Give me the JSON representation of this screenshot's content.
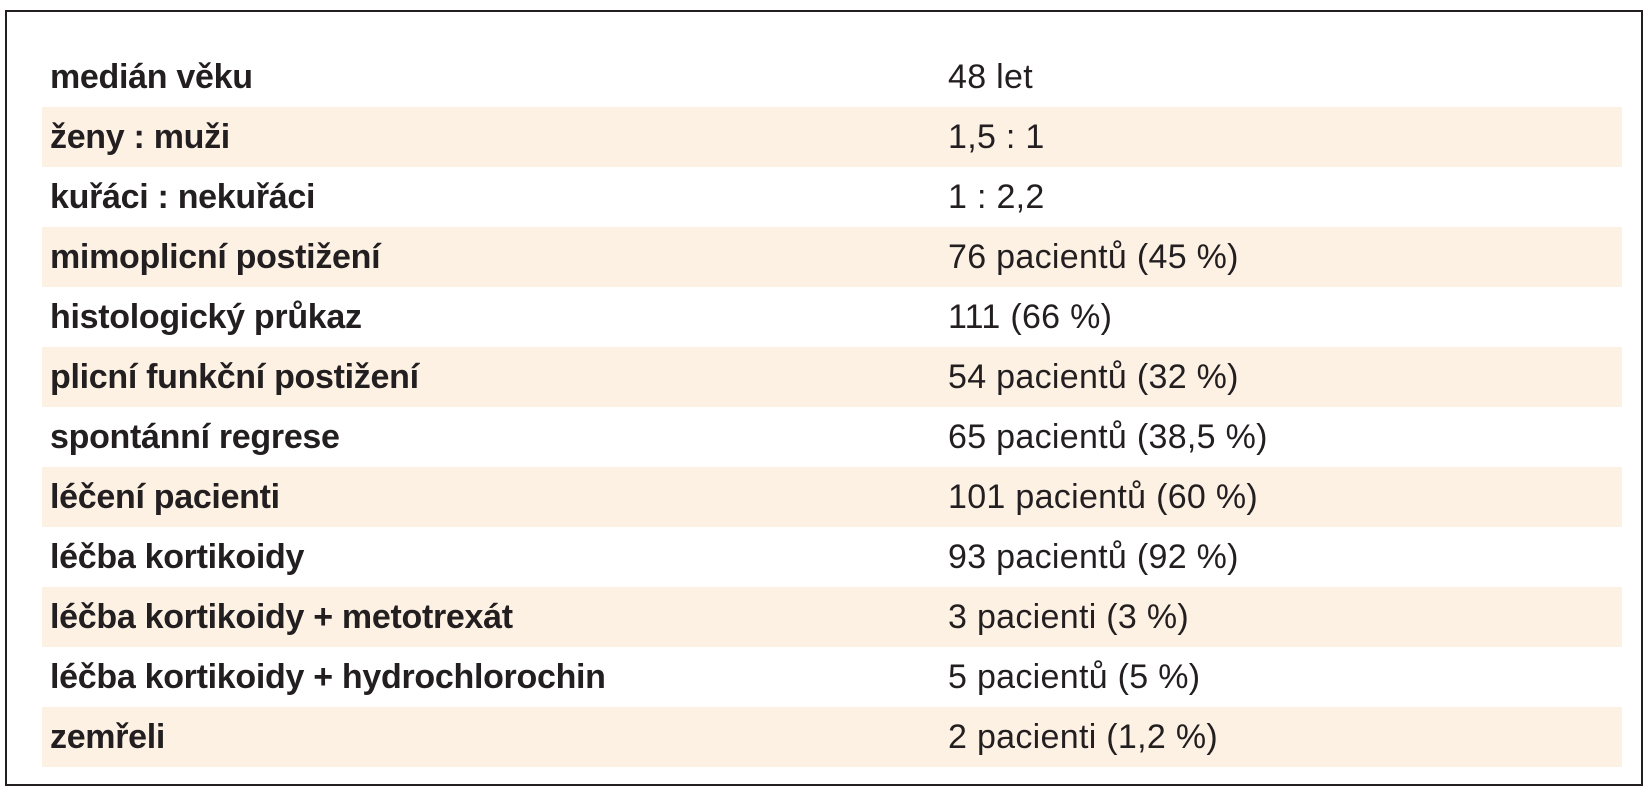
{
  "table": {
    "rows": [
      {
        "label": "medián věku",
        "value": "48 let"
      },
      {
        "label": "ženy : muži",
        "value": "1,5 : 1"
      },
      {
        "label": "kuřáci : nekuřáci",
        "value": "1 : 2,2"
      },
      {
        "label": "mimoplicní postižení",
        "value": "76 pacientů (45 %)"
      },
      {
        "label": "histologický průkaz",
        "value": "111 (66 %)"
      },
      {
        "label": "plicní funkční postižení",
        "value": "54 pacientů (32 %)"
      },
      {
        "label": "spontánní regrese",
        "value": "65 pacientů (38,5 %)"
      },
      {
        "label": "léčení pacienti",
        "value": "101 pacientů (60 %)"
      },
      {
        "label": "léčba kortikoidy",
        "value": "93 pacientů (92 %)"
      },
      {
        "label": "léčba kortikoidy + metotrexát",
        "value": "3 pacienti (3 %)"
      },
      {
        "label": "léčba kortikoidy + hydrochlorochin",
        "value": "5 pacientů (5 %)"
      },
      {
        "label": "zemřeli",
        "value": "2 pacienti (1,2 %)"
      }
    ]
  },
  "colors": {
    "shaded_row": "#fdf1e4",
    "text": "#231f20",
    "border": "#231f20"
  }
}
